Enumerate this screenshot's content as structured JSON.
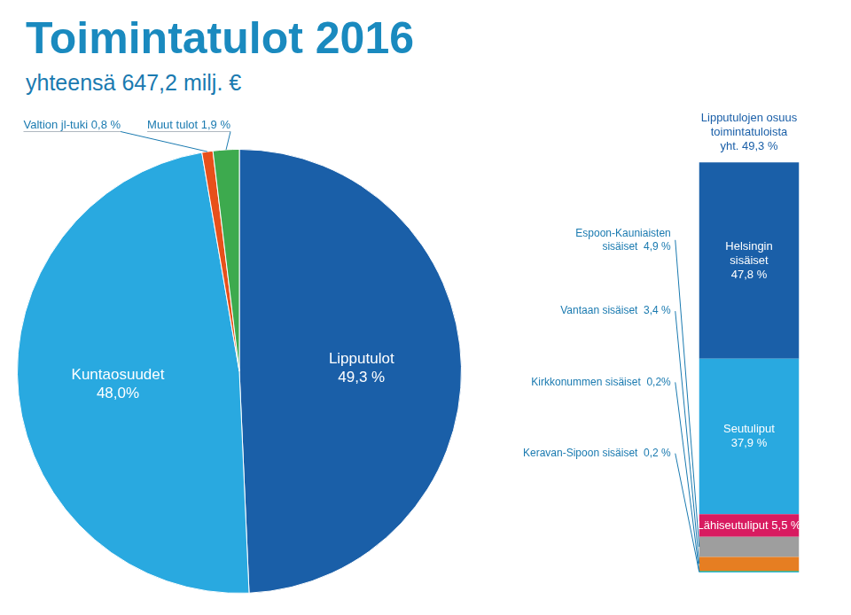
{
  "chart_data": [
    {
      "type": "pie",
      "title": "Toimintatulot 2016",
      "subtitle": "yhteensä 647,2 milj. €",
      "categories": [
        "Lipputulot\n49,3 %",
        "Kuntaosuudet\n48,0%",
        "Valtion jl-tuki 0,8 %",
        "Muut tulot 1,9 %"
      ],
      "values": [
        49.3,
        48.0,
        0.8,
        1.9
      ],
      "colors": [
        "#1a5fa8",
        "#29a9e0",
        "#e8501a",
        "#3daa4e"
      ]
    },
    {
      "type": "bar",
      "title": "Lipputulojen osuus\ntoimintatuloista\nyht. 49,3 %",
      "stacked": true,
      "categories": [
        null
      ],
      "series": [
        {
          "name": "Helsingin\nsisäiset\n47,8 %",
          "color": "#1a5fa8",
          "values": [
            47.8
          ]
        },
        {
          "name": "Seutuliput\n37,9 %",
          "color": "#29a9e0",
          "values": [
            37.9
          ]
        },
        {
          "name": "Lähiseutuliput 5,5 %",
          "color": "#d81b60",
          "values": [
            5.5
          ]
        },
        {
          "name": "Espoon-Kauniaisten\nsisäiset  4,9 %",
          "color": "#9e9e9e",
          "values": [
            4.9
          ]
        },
        {
          "name": "Vantaan sisäiset  3,4 %",
          "color": "#e67e22",
          "values": [
            3.4
          ]
        },
        {
          "name": "Kirkkonummen sisäiset  0,2%",
          "color": "#43a047",
          "values": [
            0.2
          ]
        },
        {
          "name": "Keravan-Sipoon sisäiset  0,2 %",
          "color": "#29b6d8",
          "values": [
            0.2
          ]
        }
      ],
      "ylim": [
        0,
        100
      ],
      "tick_labels": false,
      "grid": false
    }
  ]
}
